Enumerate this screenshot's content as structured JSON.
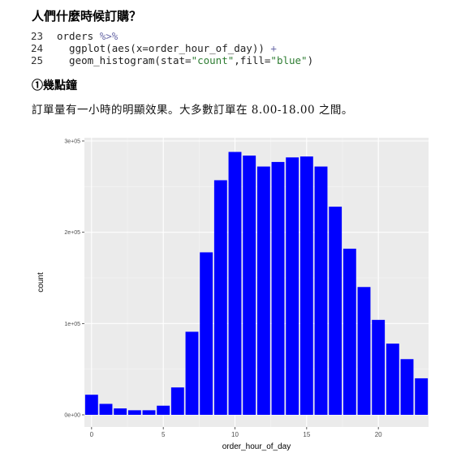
{
  "heading": "人們什麼時候訂購？",
  "code": [
    {
      "num": "23",
      "tokens": [
        {
          "t": "orders ",
          "c": "fn"
        },
        {
          "t": "%>%",
          "c": "op"
        }
      ]
    },
    {
      "num": "24",
      "tokens": [
        {
          "t": "  ggplot(aes(x=order_hour_of_day)) ",
          "c": "fn"
        },
        {
          "t": "+",
          "c": "op"
        }
      ]
    },
    {
      "num": "25",
      "tokens": [
        {
          "t": "  geom_histogram(stat=",
          "c": "fn"
        },
        {
          "t": "\"count\"",
          "c": "str"
        },
        {
          "t": ",fill=",
          "c": "fn"
        },
        {
          "t": "\"blue\"",
          "c": "str"
        },
        {
          "t": ")",
          "c": "fn"
        }
      ]
    }
  ],
  "subheading": "①幾點鐘",
  "paragraph": "訂單量有一小時的明顯效果。大多數訂單在 8.00-18.00 之間。",
  "chart_data": {
    "type": "bar",
    "x": [
      0,
      1,
      2,
      3,
      4,
      5,
      6,
      7,
      8,
      9,
      10,
      11,
      12,
      13,
      14,
      15,
      16,
      17,
      18,
      19,
      20,
      21,
      22,
      23
    ],
    "values": [
      22000,
      12000,
      7000,
      5000,
      5000,
      10000,
      30000,
      91000,
      178000,
      257000,
      288000,
      284000,
      272000,
      277000,
      282000,
      283000,
      272000,
      228000,
      182000,
      140000,
      104000,
      78000,
      61000,
      40000
    ],
    "bar_color": "#0000ff",
    "xlabel": "order_hour_of_day",
    "ylabel": "count",
    "xticks": [
      0,
      5,
      10,
      15,
      20
    ],
    "yticks": [
      0,
      100000,
      200000,
      300000
    ],
    "ytick_labels": [
      "0e+00",
      "1e+05",
      "2e+05",
      "3e+05"
    ],
    "xlim": [
      -0.5,
      23.5
    ],
    "ylim": [
      0,
      300000
    ],
    "grid": true
  }
}
